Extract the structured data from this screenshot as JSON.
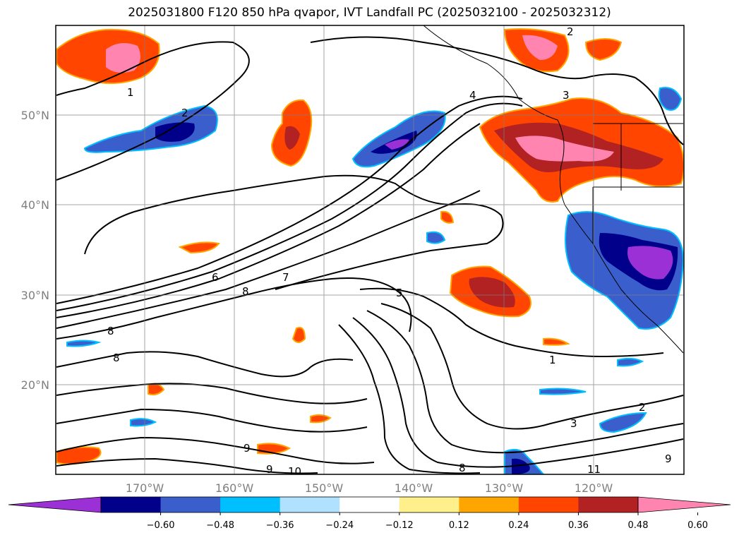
{
  "title": "2025031800 F120 850 hPa qvapor, IVT Landfall PC (2025032100 - 2025032312)",
  "lon_ticks": [
    "170°W",
    "160°W",
    "150°W",
    "140°W",
    "130°W",
    "120°W"
  ],
  "lat_ticks": [
    "50°N",
    "40°N",
    "30°N",
    "20°N"
  ],
  "colorbar": {
    "colors": [
      "#9b30d6",
      "#00008b",
      "#3a5fcd",
      "#00bfff",
      "#b0e2ff",
      "#ffffff",
      "#fff08c",
      "#ffa500",
      "#ff4500",
      "#b22222",
      "#ff85b0"
    ],
    "labels": [
      "-0.60",
      "-0.48",
      "-0.36",
      "-0.24",
      "-0.12",
      "0.12",
      "0.24",
      "0.36",
      "0.48",
      "0.60"
    ]
  },
  "contour_labels": [
    "1",
    "2",
    "2",
    "3",
    "4",
    "5",
    "6",
    "7",
    "8",
    "8",
    "8",
    "8",
    "9",
    "9",
    "10",
    "11",
    "1",
    "3",
    "2",
    "9"
  ]
}
